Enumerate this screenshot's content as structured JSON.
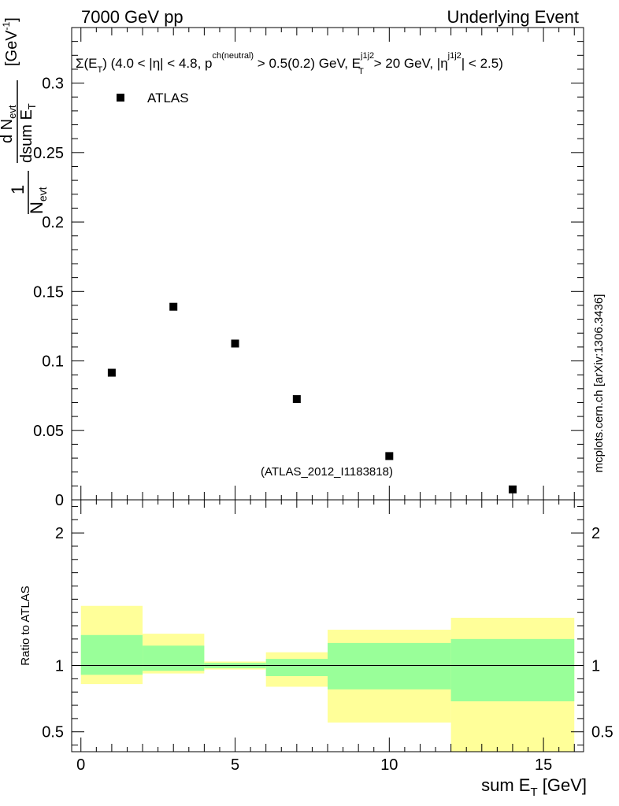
{
  "header": {
    "left_label": "7000 GeV pp",
    "right_label": "Underlying Event"
  },
  "watermark": "mcplots.cern.ch [arXiv:1306.3436]",
  "analysis_tag": "(ATLAS_2012_I1183818)",
  "colors": {
    "band_outer": "#ffff99",
    "band_inner": "#99ff99",
    "marker": "#000000",
    "analysis_tag": "#999999",
    "watermark": "#7f7f7f"
  },
  "chart_data": [
    {
      "type": "scatter",
      "panel": "main",
      "title": "Σ(E_T) (4.0 < |η| < 4.8, p^ch(neutral) > 0.5(0.2) GeV, E_T^j1j2 > 20 GeV, |η^j1j2| < 2.5)",
      "ylabel": "1/N_evt dN_evt/dsum E_T [GeV^-1]",
      "xlabel": "",
      "xlim": [
        -0.3,
        16.3
      ],
      "ylim": [
        0,
        0.34
      ],
      "grid": false,
      "legend": {
        "position": "top-left",
        "entries": [
          "ATLAS"
        ]
      },
      "yticks": [
        {
          "value": 0,
          "label": "0"
        },
        {
          "value": 0.05,
          "label": "0.05"
        },
        {
          "value": 0.1,
          "label": "0.1"
        },
        {
          "value": 0.15,
          "label": "0.15"
        },
        {
          "value": 0.2,
          "label": "0.2"
        },
        {
          "value": 0.25,
          "label": "0.25"
        },
        {
          "value": 0.3,
          "label": "0.3"
        }
      ],
      "series": [
        {
          "name": "ATLAS",
          "x": [
            1,
            3,
            5,
            7,
            10,
            14
          ],
          "y": [
            0.0915,
            0.139,
            0.1125,
            0.0725,
            0.0315,
            0.0075
          ]
        }
      ]
    },
    {
      "type": "area",
      "panel": "ratio",
      "ylabel": "Ratio to ATLAS",
      "xlabel": "sum E_T [GeV]",
      "xlim": [
        -0.3,
        16.3
      ],
      "ylim": [
        0.35,
        2.25
      ],
      "grid": false,
      "reference_line": 1,
      "yticks": [
        {
          "value": 0.5,
          "label": "0.5"
        },
        {
          "value": 1,
          "label": "1"
        },
        {
          "value": 2,
          "label": "2"
        }
      ],
      "xticks": [
        {
          "value": 0,
          "label": "0"
        },
        {
          "value": 5,
          "label": "5"
        },
        {
          "value": 10,
          "label": "10"
        },
        {
          "value": 15,
          "label": "15"
        }
      ],
      "bins": [
        {
          "xlo": 0,
          "xhi": 2,
          "outer": [
            0.86,
            1.45
          ],
          "inner": [
            0.93,
            1.23
          ]
        },
        {
          "xlo": 2,
          "xhi": 4,
          "outer": [
            0.94,
            1.24
          ],
          "inner": [
            0.96,
            1.15
          ]
        },
        {
          "xlo": 4,
          "xhi": 6,
          "outer": [
            0.97,
            1.03
          ],
          "inner": [
            0.98,
            1.02
          ]
        },
        {
          "xlo": 6,
          "xhi": 8,
          "outer": [
            0.84,
            1.1
          ],
          "inner": [
            0.92,
            1.05
          ]
        },
        {
          "xlo": 8,
          "xhi": 12,
          "outer": [
            0.57,
            1.27
          ],
          "inner": [
            0.82,
            1.17
          ]
        },
        {
          "xlo": 12,
          "xhi": 16,
          "outer": [
            0.35,
            1.36
          ],
          "inner": [
            0.73,
            1.2
          ]
        }
      ]
    }
  ]
}
